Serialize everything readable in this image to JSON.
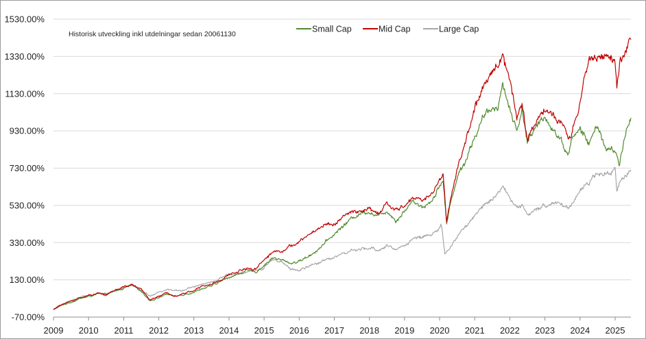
{
  "chart_data": {
    "type": "line",
    "title": "",
    "annotation": "Historisk utveckling inkl utdelningar sedan 20061130",
    "xlabel": "",
    "ylabel": "",
    "y_tick_labels": [
      "1530.00%",
      "1330.00%",
      "1130.00%",
      "930.00%",
      "730.00%",
      "530.00%",
      "330.00%",
      "130.00%",
      "-70.00%"
    ],
    "y_ticks": [
      1530,
      1330,
      1130,
      930,
      730,
      530,
      330,
      130,
      -70
    ],
    "ylim": [
      -70,
      1530
    ],
    "x_tick_labels": [
      "2009",
      "2010",
      "2011",
      "2012",
      "2013",
      "2014",
      "2015",
      "2016",
      "2017",
      "2018",
      "2019",
      "2020",
      "2021",
      "2022",
      "2023",
      "2024",
      "2025"
    ],
    "x_ticks": [
      2009,
      2010,
      2011,
      2012,
      2013,
      2014,
      2015,
      2016,
      2017,
      2018,
      2019,
      2020,
      2021,
      2022,
      2023,
      2024,
      2025
    ],
    "xlim": [
      2009.0,
      2025.45
    ],
    "grid": "horizontal",
    "legend_position": "top-center",
    "series": [
      {
        "name": "Small Cap",
        "color": "#4e8a2c",
        "points": [
          [
            2009.0,
            -30
          ],
          [
            2009.25,
            -5
          ],
          [
            2009.5,
            10
          ],
          [
            2009.75,
            30
          ],
          [
            2010.0,
            40
          ],
          [
            2010.25,
            55
          ],
          [
            2010.5,
            45
          ],
          [
            2010.75,
            70
          ],
          [
            2011.0,
            85
          ],
          [
            2011.25,
            100
          ],
          [
            2011.5,
            70
          ],
          [
            2011.75,
            20
          ],
          [
            2012.0,
            35
          ],
          [
            2012.25,
            55
          ],
          [
            2012.5,
            40
          ],
          [
            2012.75,
            55
          ],
          [
            2013.0,
            65
          ],
          [
            2013.25,
            85
          ],
          [
            2013.5,
            95
          ],
          [
            2013.75,
            120
          ],
          [
            2014.0,
            145
          ],
          [
            2014.25,
            160
          ],
          [
            2014.5,
            180
          ],
          [
            2014.75,
            170
          ],
          [
            2015.0,
            210
          ],
          [
            2015.25,
            250
          ],
          [
            2015.5,
            235
          ],
          [
            2015.75,
            220
          ],
          [
            2016.0,
            230
          ],
          [
            2016.25,
            255
          ],
          [
            2016.5,
            290
          ],
          [
            2016.75,
            330
          ],
          [
            2017.0,
            375
          ],
          [
            2017.25,
            420
          ],
          [
            2017.5,
            460
          ],
          [
            2017.75,
            490
          ],
          [
            2018.0,
            500
          ],
          [
            2018.25,
            470
          ],
          [
            2018.5,
            505
          ],
          [
            2018.75,
            450
          ],
          [
            2019.0,
            500
          ],
          [
            2019.25,
            560
          ],
          [
            2019.5,
            520
          ],
          [
            2019.75,
            550
          ],
          [
            2020.0,
            640
          ],
          [
            2020.1,
            660
          ],
          [
            2020.2,
            430
          ],
          [
            2020.35,
            580
          ],
          [
            2020.5,
            680
          ],
          [
            2020.75,
            780
          ],
          [
            2021.0,
            900
          ],
          [
            2021.25,
            1000
          ],
          [
            2021.5,
            1050
          ],
          [
            2021.65,
            1070
          ],
          [
            2021.8,
            1180
          ],
          [
            2022.0,
            1050
          ],
          [
            2022.2,
            930
          ],
          [
            2022.35,
            1050
          ],
          [
            2022.5,
            880
          ],
          [
            2022.75,
            940
          ],
          [
            2023.0,
            1010
          ],
          [
            2023.25,
            940
          ],
          [
            2023.5,
            870
          ],
          [
            2023.65,
            800
          ],
          [
            2023.75,
            880
          ],
          [
            2024.0,
            940
          ],
          [
            2024.25,
            860
          ],
          [
            2024.5,
            960
          ],
          [
            2024.75,
            830
          ],
          [
            2025.0,
            820
          ],
          [
            2025.12,
            740
          ],
          [
            2025.25,
            880
          ],
          [
            2025.45,
            1000
          ]
        ]
      },
      {
        "name": "Mid Cap",
        "color": "#c00000",
        "points": [
          [
            2009.0,
            -30
          ],
          [
            2009.25,
            0
          ],
          [
            2009.5,
            15
          ],
          [
            2009.75,
            35
          ],
          [
            2010.0,
            45
          ],
          [
            2010.25,
            60
          ],
          [
            2010.5,
            50
          ],
          [
            2010.75,
            75
          ],
          [
            2011.0,
            90
          ],
          [
            2011.25,
            105
          ],
          [
            2011.5,
            75
          ],
          [
            2011.75,
            25
          ],
          [
            2012.0,
            40
          ],
          [
            2012.25,
            60
          ],
          [
            2012.5,
            45
          ],
          [
            2012.75,
            60
          ],
          [
            2013.0,
            75
          ],
          [
            2013.25,
            95
          ],
          [
            2013.5,
            105
          ],
          [
            2013.75,
            130
          ],
          [
            2014.0,
            155
          ],
          [
            2014.25,
            175
          ],
          [
            2014.5,
            195
          ],
          [
            2014.75,
            190
          ],
          [
            2015.0,
            240
          ],
          [
            2015.25,
            280
          ],
          [
            2015.5,
            290
          ],
          [
            2015.75,
            310
          ],
          [
            2016.0,
            330
          ],
          [
            2016.25,
            370
          ],
          [
            2016.5,
            400
          ],
          [
            2016.75,
            430
          ],
          [
            2017.0,
            430
          ],
          [
            2017.25,
            470
          ],
          [
            2017.5,
            490
          ],
          [
            2017.75,
            500
          ],
          [
            2018.0,
            510
          ],
          [
            2018.25,
            480
          ],
          [
            2018.5,
            540
          ],
          [
            2018.75,
            500
          ],
          [
            2019.0,
            530
          ],
          [
            2019.25,
            570
          ],
          [
            2019.5,
            560
          ],
          [
            2019.75,
            590
          ],
          [
            2020.0,
            660
          ],
          [
            2020.1,
            700
          ],
          [
            2020.2,
            450
          ],
          [
            2020.35,
            600
          ],
          [
            2020.5,
            720
          ],
          [
            2020.75,
            880
          ],
          [
            2021.0,
            1050
          ],
          [
            2021.25,
            1150
          ],
          [
            2021.5,
            1250
          ],
          [
            2021.65,
            1300
          ],
          [
            2021.8,
            1340
          ],
          [
            2022.0,
            1200
          ],
          [
            2022.2,
            1020
          ],
          [
            2022.35,
            1080
          ],
          [
            2022.5,
            880
          ],
          [
            2022.75,
            980
          ],
          [
            2023.0,
            1060
          ],
          [
            2023.25,
            1000
          ],
          [
            2023.5,
            960
          ],
          [
            2023.65,
            880
          ],
          [
            2023.75,
            900
          ],
          [
            2024.0,
            1080
          ],
          [
            2024.25,
            1320
          ],
          [
            2024.5,
            1330
          ],
          [
            2024.75,
            1340
          ],
          [
            2025.0,
            1300
          ],
          [
            2025.05,
            1150
          ],
          [
            2025.15,
            1320
          ],
          [
            2025.3,
            1340
          ],
          [
            2025.45,
            1420
          ]
        ]
      },
      {
        "name": "Large Cap",
        "color": "#a6a6a6",
        "points": [
          [
            2009.0,
            -30
          ],
          [
            2009.25,
            0
          ],
          [
            2009.5,
            15
          ],
          [
            2009.75,
            35
          ],
          [
            2010.0,
            45
          ],
          [
            2010.25,
            60
          ],
          [
            2010.5,
            55
          ],
          [
            2010.75,
            75
          ],
          [
            2011.0,
            90
          ],
          [
            2011.25,
            100
          ],
          [
            2011.5,
            70
          ],
          [
            2011.75,
            40
          ],
          [
            2012.0,
            60
          ],
          [
            2012.25,
            75
          ],
          [
            2012.5,
            70
          ],
          [
            2012.75,
            80
          ],
          [
            2013.0,
            95
          ],
          [
            2013.25,
            110
          ],
          [
            2013.5,
            115
          ],
          [
            2013.75,
            140
          ],
          [
            2014.0,
            155
          ],
          [
            2014.25,
            160
          ],
          [
            2014.5,
            170
          ],
          [
            2014.75,
            180
          ],
          [
            2015.0,
            200
          ],
          [
            2015.25,
            240
          ],
          [
            2015.5,
            220
          ],
          [
            2015.75,
            190
          ],
          [
            2016.0,
            180
          ],
          [
            2016.25,
            200
          ],
          [
            2016.5,
            215
          ],
          [
            2016.75,
            240
          ],
          [
            2017.0,
            255
          ],
          [
            2017.25,
            270
          ],
          [
            2017.5,
            285
          ],
          [
            2017.75,
            290
          ],
          [
            2018.0,
            300
          ],
          [
            2018.25,
            290
          ],
          [
            2018.5,
            315
          ],
          [
            2018.75,
            290
          ],
          [
            2019.0,
            320
          ],
          [
            2019.25,
            350
          ],
          [
            2019.5,
            360
          ],
          [
            2019.75,
            380
          ],
          [
            2020.0,
            400
          ],
          [
            2020.05,
            420
          ],
          [
            2020.15,
            260
          ],
          [
            2020.3,
            310
          ],
          [
            2020.5,
            360
          ],
          [
            2020.75,
            420
          ],
          [
            2021.0,
            470
          ],
          [
            2021.25,
            530
          ],
          [
            2021.5,
            570
          ],
          [
            2021.65,
            600
          ],
          [
            2021.8,
            640
          ],
          [
            2022.0,
            560
          ],
          [
            2022.2,
            520
          ],
          [
            2022.35,
            540
          ],
          [
            2022.5,
            470
          ],
          [
            2022.75,
            500
          ],
          [
            2023.0,
            530
          ],
          [
            2023.25,
            550
          ],
          [
            2023.5,
            540
          ],
          [
            2023.65,
            510
          ],
          [
            2023.75,
            540
          ],
          [
            2024.0,
            610
          ],
          [
            2024.25,
            650
          ],
          [
            2024.5,
            700
          ],
          [
            2024.75,
            690
          ],
          [
            2025.0,
            720
          ],
          [
            2025.05,
            600
          ],
          [
            2025.15,
            680
          ],
          [
            2025.3,
            690
          ],
          [
            2025.45,
            720
          ]
        ]
      }
    ]
  }
}
